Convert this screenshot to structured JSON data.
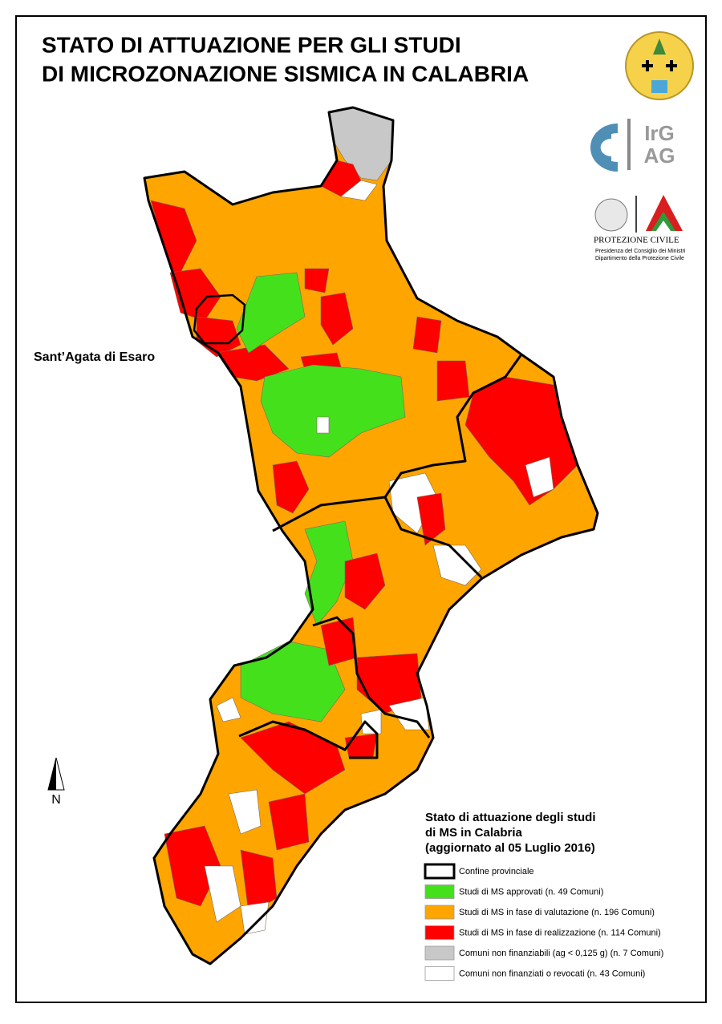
{
  "title": [
    "STATO DI ATTUAZIONE PER GLI STUDI",
    "DI MICROZONAZIONE SISMICA IN CALABRIA"
  ],
  "map_label": "Sant’Agata di Esaro",
  "igag_logo": [
    "IrG",
    "AG"
  ],
  "protezione_civile": {
    "name": "PROTEZIONE CIVILE",
    "lines": [
      "Presidenza del Consiglio dei Ministri",
      "Dipartimento della Protezione Civile"
    ]
  },
  "legend": {
    "title": [
      "Stato di attuazione degli studi",
      "di MS in Calabria",
      "(aggiornato al 05 Luglio 2016)"
    ],
    "items": [
      {
        "label": "Confine provinciale",
        "color": "#ffffff",
        "border": true
      },
      {
        "label": "Studi di MS approvati (n. 49 Comuni)",
        "color": "#44e01c"
      },
      {
        "label": "Studi di MS in fase di valutazione (n. 196 Comuni)",
        "color": "#ffa500"
      },
      {
        "label": "Studi di MS in fase di realizzazione (n. 114 Comuni)",
        "color": "#ff0000"
      },
      {
        "label": "Comuni non finanziabili (ag < 0,125 g) (n. 7 Comuni)",
        "color": "#c8c8c8"
      },
      {
        "label": "Comuni non finanziati o revocati (n. 43 Comuni)",
        "color": "#ffffff"
      }
    ]
  },
  "north": "N"
}
